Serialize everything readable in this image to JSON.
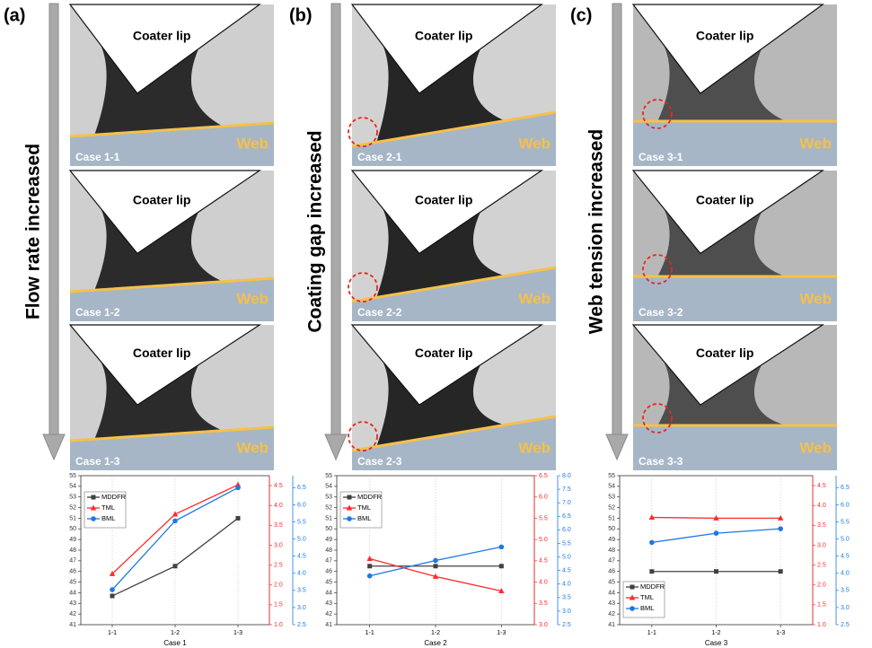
{
  "panels": [
    {
      "label": "(a)",
      "arrow": "Flow rate increased",
      "images": [
        {
          "lip": "Coater lip",
          "web": "Web",
          "case": "Case 1-1"
        },
        {
          "lip": "Coater lip",
          "web": "Web",
          "case": "Case 1-2"
        },
        {
          "lip": "Coater lip",
          "web": "Web",
          "case": "Case 1-3"
        }
      ]
    },
    {
      "label": "(b)",
      "arrow": "Coating gap increased",
      "images": [
        {
          "lip": "Coater lip",
          "web": "Web",
          "case": "Case 2-1"
        },
        {
          "lip": "Coater lip",
          "web": "Web",
          "case": "Case 2-2"
        },
        {
          "lip": "Coater lip",
          "web": "Web",
          "case": "Case 2-3"
        }
      ]
    },
    {
      "label": "(c)",
      "arrow": "Web tension increased",
      "images": [
        {
          "lip": "Coater lip",
          "web": "Web",
          "case": "Case 3-1"
        },
        {
          "lip": "Coater lip",
          "web": "Web",
          "case": "Case 3-2"
        },
        {
          "lip": "Coater lip",
          "web": "Web",
          "case": "Case 3-3"
        }
      ]
    }
  ],
  "chart_data": [
    {
      "type": "line",
      "xlabel": "Case 1",
      "categories": [
        "1-1",
        "1-2",
        "1-3"
      ],
      "grid": true,
      "legend": "upper left",
      "ylim": [
        41,
        55
      ],
      "yticks": [
        41,
        42,
        43,
        44,
        45,
        46,
        47,
        48,
        49,
        50,
        51,
        52,
        53,
        54,
        55
      ],
      "y2lim": [
        1.0,
        4.75
      ],
      "y2ticks": [
        {
          "value": 1,
          "label": "1.0"
        },
        1.5,
        {
          "value": 2,
          "label": "2.0"
        },
        2.5,
        {
          "value": 3,
          "label": "3.0"
        },
        3.5,
        {
          "value": 4,
          "label": "4.0"
        },
        4.5
      ],
      "y2color": "#ff2a2a",
      "y3lim": [
        2.5,
        6.85
      ],
      "y3ticks": [
        2.5,
        {
          "value": 3,
          "label": "3.0"
        },
        3.5,
        {
          "value": 4,
          "label": "4.0"
        },
        4.5,
        {
          "value": 5,
          "label": "5.0"
        },
        5.5,
        {
          "value": 6,
          "label": "6.0"
        },
        6.5
      ],
      "y3color": "#1e78e0",
      "series": [
        {
          "name": "MDDFR",
          "color": "#404040",
          "marker": "square",
          "values": [
            43.7,
            46.5,
            51.0
          ]
        },
        {
          "name": "TML",
          "color": "#ff2a2a",
          "marker": "triangle",
          "axis": "y2",
          "values": [
            2.28,
            3.78,
            4.52
          ]
        },
        {
          "name": "BML",
          "color": "#1e78e0",
          "marker": "circle",
          "axis": "y3",
          "values": [
            3.52,
            5.53,
            6.5
          ]
        }
      ]
    },
    {
      "type": "line",
      "xlabel": "Case 2",
      "categories": [
        "1-1",
        "1-2",
        "1-3"
      ],
      "grid": true,
      "legend": "upper left",
      "ylim": [
        41,
        55
      ],
      "yticks": [
        41,
        42,
        43,
        44,
        45,
        46,
        47,
        48,
        49,
        50,
        51,
        52,
        53,
        54,
        55
      ],
      "y2lim": [
        3.0,
        6.5
      ],
      "y2ticks": [
        {
          "value": 3,
          "label": "3.0"
        },
        3.5,
        {
          "value": 4,
          "label": "4.0"
        },
        4.5,
        {
          "value": 5,
          "label": "5.0"
        },
        5.5,
        {
          "value": 6,
          "label": "6.0"
        },
        6.5
      ],
      "y2color": "#ff2a2a",
      "y3lim": [
        2.5,
        8.0
      ],
      "y3ticks": [
        2.5,
        {
          "value": 3,
          "label": "3.0"
        },
        3.5,
        {
          "value": 4,
          "label": "4.0"
        },
        4.5,
        {
          "value": 5,
          "label": "5.0"
        },
        5.5,
        {
          "value": 6,
          "label": "6.0"
        },
        6.5,
        {
          "value": 7,
          "label": "7.0"
        },
        7.5,
        {
          "value": 8,
          "label": "8.0"
        }
      ],
      "y3color": "#1e78e0",
      "series": [
        {
          "name": "MDDFR",
          "color": "#404040",
          "marker": "square",
          "values": [
            46.5,
            46.5,
            46.5
          ]
        },
        {
          "name": "TML",
          "color": "#ff2a2a",
          "marker": "triangle",
          "axis": "y2",
          "values": [
            4.55,
            4.13,
            3.79
          ]
        },
        {
          "name": "BML",
          "color": "#1e78e0",
          "marker": "circle",
          "axis": "y3",
          "values": [
            4.3,
            4.87,
            5.37
          ]
        }
      ]
    },
    {
      "type": "line",
      "xlabel": "Case 3",
      "categories": [
        "1-1",
        "1-2",
        "1-3"
      ],
      "grid": true,
      "legend": "lower left",
      "ylim": [
        41,
        55
      ],
      "yticks": [
        41,
        42,
        43,
        44,
        45,
        46,
        47,
        48,
        49,
        50,
        51,
        52,
        53,
        54,
        55
      ],
      "y2lim": [
        1.0,
        4.75
      ],
      "y2ticks": [
        {
          "value": 1,
          "label": "1.0"
        },
        1.5,
        {
          "value": 2,
          "label": "2.0"
        },
        2.5,
        {
          "value": 3,
          "label": "3.0"
        },
        3.5,
        {
          "value": 4,
          "label": "4.0"
        },
        4.5
      ],
      "y2color": "#ff2a2a",
      "y3lim": [
        2.5,
        6.85
      ],
      "y3ticks": [
        2.5,
        {
          "value": 3,
          "label": "3.0"
        },
        3.5,
        {
          "value": 4,
          "label": "4.0"
        },
        4.5,
        {
          "value": 5,
          "label": "5.0"
        },
        5.5,
        {
          "value": 6,
          "label": "6.0"
        },
        6.5
      ],
      "y3color": "#1e78e0",
      "series": [
        {
          "name": "MDDFR",
          "color": "#404040",
          "marker": "square",
          "values": [
            46.0,
            46.0,
            46.0
          ]
        },
        {
          "name": "TML",
          "color": "#ff2a2a",
          "marker": "triangle",
          "axis": "y2",
          "values": [
            3.7,
            3.68,
            3.68
          ]
        },
        {
          "name": "BML",
          "color": "#1e78e0",
          "marker": "circle",
          "axis": "y3",
          "values": [
            4.9,
            5.17,
            5.3
          ]
        }
      ]
    }
  ]
}
